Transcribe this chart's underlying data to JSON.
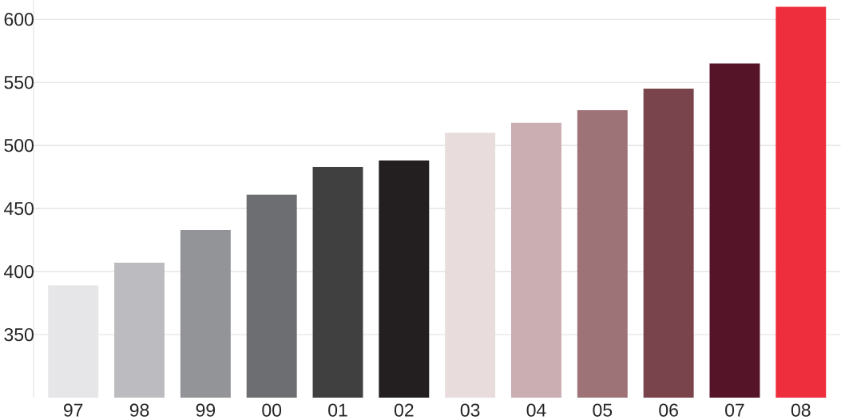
{
  "chart_data": {
    "type": "bar",
    "categories": [
      "97",
      "98",
      "99",
      "00",
      "01",
      "02",
      "03",
      "04",
      "05",
      "06",
      "07",
      "08"
    ],
    "values": [
      389,
      407,
      433,
      461,
      483,
      488,
      510,
      518,
      528,
      545,
      565,
      610
    ],
    "colors": [
      "#e6e6e8",
      "#bcbcc0",
      "#939498",
      "#6d6e72",
      "#404040",
      "#231f20",
      "#e8dcdd",
      "#cbaeb1",
      "#9e7377",
      "#7a444c",
      "#561428",
      "#ee2d3d"
    ],
    "ylim": [
      300,
      615
    ],
    "yticks": [
      350,
      400,
      450,
      500,
      550,
      600
    ],
    "grid": "y"
  }
}
